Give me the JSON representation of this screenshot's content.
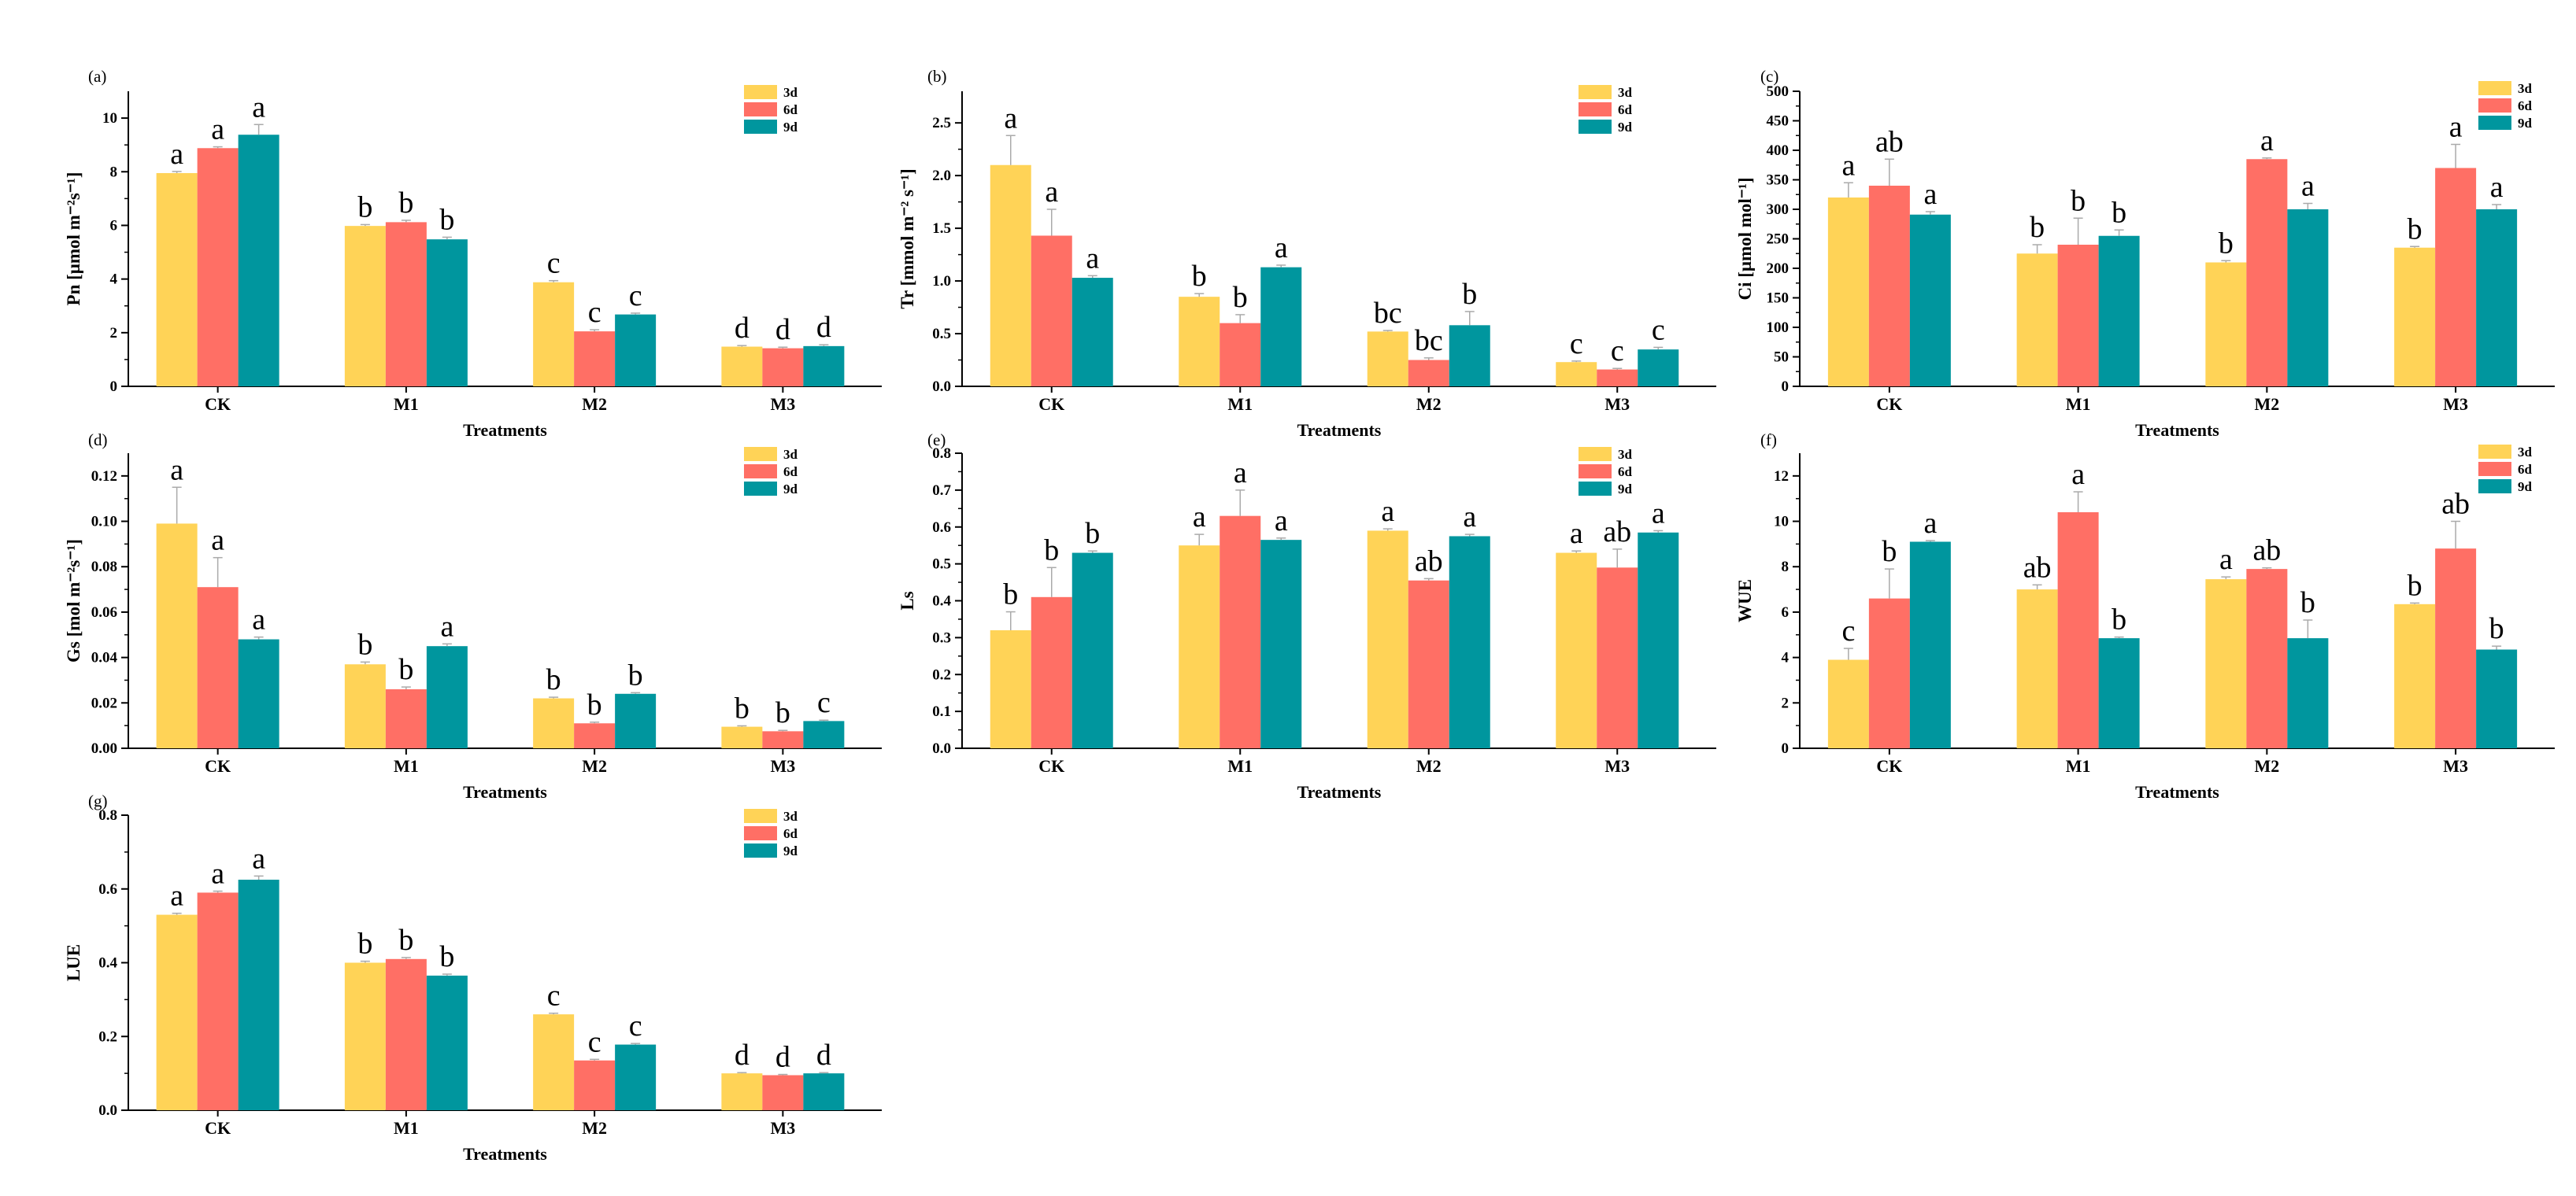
{
  "colors": {
    "3d": "#FFD357",
    "6d": "#FF6F65",
    "9d": "#00969E",
    "error_bar": "#AAAAAA"
  },
  "chart_data": [
    {
      "type": "bar",
      "panel": "(a)",
      "ylabel": "Pn [μmol m⁻²s⁻¹]",
      "xlabel": "Treatments",
      "categories": [
        "CK",
        "M1",
        "M2",
        "M3"
      ],
      "ylim": [
        0,
        11
      ],
      "yticks": [
        0,
        2,
        4,
        6,
        8,
        10
      ],
      "ytick_labels": [
        "0",
        "2",
        "4",
        "6",
        "8",
        "10"
      ],
      "legend_position": "top-right",
      "series": [
        {
          "name": "3d",
          "values": [
            7.95,
            5.98,
            3.88,
            1.48
          ],
          "errors": [
            0.06,
            0.05,
            0.06,
            0.04
          ],
          "letters": [
            "a",
            "b",
            "c",
            "d"
          ]
        },
        {
          "name": "6d",
          "values": [
            8.88,
            6.12,
            2.05,
            1.42
          ],
          "errors": [
            0.05,
            0.07,
            0.06,
            0.04
          ],
          "letters": [
            "a",
            "b",
            "c",
            "d"
          ]
        },
        {
          "name": "9d",
          "values": [
            9.38,
            5.48,
            2.68,
            1.5
          ],
          "errors": [
            0.38,
            0.08,
            0.05,
            0.05
          ],
          "letters": [
            "a",
            "b",
            "c",
            "d"
          ]
        }
      ]
    },
    {
      "type": "bar",
      "panel": "(b)",
      "ylabel": "Tr [mmol m⁻² s⁻¹]",
      "xlabel": "Treatments",
      "categories": [
        "CK",
        "M1",
        "M2",
        "M3"
      ],
      "ylim": [
        0,
        2.8
      ],
      "yticks": [
        0,
        0.5,
        1.0,
        1.5,
        2.0,
        2.5
      ],
      "ytick_labels": [
        "0.0",
        "0.5",
        "1.0",
        "1.5",
        "2.0",
        "2.5"
      ],
      "legend_position": "top-right",
      "series": [
        {
          "name": "3d",
          "values": [
            2.1,
            0.85,
            0.52,
            0.23
          ],
          "errors": [
            0.28,
            0.03,
            0.01,
            0.01
          ],
          "letters": [
            "a",
            "b",
            "bc",
            "c"
          ]
        },
        {
          "name": "6d",
          "values": [
            1.43,
            0.6,
            0.25,
            0.16
          ],
          "errors": [
            0.25,
            0.08,
            0.02,
            0.01
          ],
          "letters": [
            "a",
            "b",
            "bc",
            "c"
          ]
        },
        {
          "name": "9d",
          "values": [
            1.03,
            1.13,
            0.58,
            0.35
          ],
          "errors": [
            0.02,
            0.02,
            0.13,
            0.02
          ],
          "letters": [
            "a",
            "a",
            "b",
            "c"
          ]
        }
      ]
    },
    {
      "type": "bar",
      "panel": "(c)",
      "ylabel": "Ci [μmol mol⁻¹]",
      "xlabel": "Treatments",
      "categories": [
        "CK",
        "M1",
        "M2",
        "M3"
      ],
      "ylim": [
        0,
        500
      ],
      "yticks": [
        0,
        50,
        100,
        150,
        200,
        250,
        300,
        350,
        400,
        450,
        500
      ],
      "ytick_labels": [
        "0",
        "50",
        "100",
        "150",
        "200",
        "250",
        "300",
        "350",
        "400",
        "450",
        "500"
      ],
      "legend_position": "top-right",
      "series": [
        {
          "name": "3d",
          "values": [
            320,
            225,
            210,
            235
          ],
          "errors": [
            25,
            15,
            3,
            2
          ],
          "letters": [
            "a",
            "b",
            "b",
            "b"
          ]
        },
        {
          "name": "6d",
          "values": [
            340,
            240,
            385,
            370
          ],
          "errors": [
            45,
            45,
            2,
            40
          ],
          "letters": [
            "ab",
            "b",
            "a",
            "a"
          ]
        },
        {
          "name": "9d",
          "values": [
            291,
            255,
            300,
            300
          ],
          "errors": [
            5,
            10,
            10,
            8
          ],
          "letters": [
            "a",
            "b",
            "a",
            "a"
          ]
        }
      ]
    },
    {
      "type": "bar",
      "panel": "(d)",
      "ylabel": "Gs [mol m⁻²s⁻¹]",
      "xlabel": "Treatments",
      "categories": [
        "CK",
        "M1",
        "M2",
        "M3"
      ],
      "ylim": [
        0,
        0.13
      ],
      "yticks": [
        0,
        0.02,
        0.04,
        0.06,
        0.08,
        0.1,
        0.12
      ],
      "ytick_labels": [
        "0.00",
        "0.02",
        "0.04",
        "0.06",
        "0.08",
        "0.10",
        "0.12"
      ],
      "legend_position": "top-right",
      "series": [
        {
          "name": "3d",
          "values": [
            0.099,
            0.037,
            0.022,
            0.0095
          ],
          "errors": [
            0.016,
            0.001,
            0.0005,
            0.0004
          ],
          "letters": [
            "a",
            "b",
            "b",
            "b"
          ]
        },
        {
          "name": "6d",
          "values": [
            0.071,
            0.026,
            0.011,
            0.0075
          ],
          "errors": [
            0.013,
            0.001,
            0.0005,
            0.0004
          ],
          "letters": [
            "a",
            "b",
            "b",
            "b"
          ]
        },
        {
          "name": "9d",
          "values": [
            0.048,
            0.045,
            0.024,
            0.012
          ],
          "errors": [
            0.001,
            0.001,
            0.0005,
            0.0004
          ],
          "letters": [
            "a",
            "a",
            "b",
            "c"
          ]
        }
      ]
    },
    {
      "type": "bar",
      "panel": "(e)",
      "ylabel": "Ls",
      "xlabel": "Treatments",
      "categories": [
        "CK",
        "M1",
        "M2",
        "M3"
      ],
      "ylim": [
        0,
        0.8
      ],
      "yticks": [
        0,
        0.1,
        0.2,
        0.3,
        0.4,
        0.5,
        0.6,
        0.7,
        0.8
      ],
      "ytick_labels": [
        "0.0",
        "0.1",
        "0.2",
        "0.3",
        "0.4",
        "0.5",
        "0.6",
        "0.7",
        "0.8"
      ],
      "legend_position": "top-right",
      "series": [
        {
          "name": "3d",
          "values": [
            0.32,
            0.55,
            0.59,
            0.53
          ],
          "errors": [
            0.05,
            0.03,
            0.005,
            0.005
          ],
          "letters": [
            "b",
            "a",
            "a",
            "a"
          ]
        },
        {
          "name": "6d",
          "values": [
            0.41,
            0.63,
            0.455,
            0.49
          ],
          "errors": [
            0.08,
            0.07,
            0.005,
            0.05
          ],
          "letters": [
            "b",
            "a",
            "ab",
            "ab"
          ]
        },
        {
          "name": "9d",
          "values": [
            0.53,
            0.565,
            0.575,
            0.585
          ],
          "errors": [
            0.005,
            0.005,
            0.005,
            0.005
          ],
          "letters": [
            "b",
            "a",
            "a",
            "a"
          ]
        }
      ]
    },
    {
      "type": "bar",
      "panel": "(f)",
      "ylabel": "WUE",
      "xlabel": "Treatments",
      "categories": [
        "CK",
        "M1",
        "M2",
        "M3"
      ],
      "ylim": [
        0,
        13
      ],
      "yticks": [
        0,
        2,
        4,
        6,
        8,
        10,
        12
      ],
      "ytick_labels": [
        "0",
        "2",
        "4",
        "6",
        "8",
        "10",
        "12"
      ],
      "legend_position": "top-right",
      "series": [
        {
          "name": "3d",
          "values": [
            3.9,
            7.0,
            7.45,
            6.35
          ],
          "errors": [
            0.5,
            0.2,
            0.1,
            0.05
          ],
          "letters": [
            "c",
            "ab",
            "a",
            "b"
          ]
        },
        {
          "name": "6d",
          "values": [
            6.6,
            10.4,
            7.9,
            8.8
          ],
          "errors": [
            1.3,
            0.9,
            0.05,
            1.2
          ],
          "letters": [
            "b",
            "a",
            "ab",
            "ab"
          ]
        },
        {
          "name": "9d",
          "values": [
            9.1,
            4.85,
            4.85,
            4.35
          ],
          "errors": [
            0.05,
            0.05,
            0.8,
            0.15
          ],
          "letters": [
            "a",
            "b",
            "b",
            "b"
          ]
        }
      ]
    },
    {
      "type": "bar",
      "panel": "(g)",
      "ylabel": "LUE",
      "xlabel": "Treatments",
      "categories": [
        "CK",
        "M1",
        "M2",
        "M3"
      ],
      "ylim": [
        0,
        0.8
      ],
      "yticks": [
        0,
        0.2,
        0.4,
        0.6,
        0.8
      ],
      "ytick_labels": [
        "0.0",
        "0.2",
        "0.4",
        "0.6",
        "0.8"
      ],
      "legend_position": "top-right",
      "series": [
        {
          "name": "3d",
          "values": [
            0.53,
            0.4,
            0.26,
            0.1
          ],
          "errors": [
            0.004,
            0.004,
            0.003,
            0.002
          ],
          "letters": [
            "a",
            "b",
            "c",
            "d"
          ]
        },
        {
          "name": "6d",
          "values": [
            0.59,
            0.41,
            0.135,
            0.095
          ],
          "errors": [
            0.004,
            0.004,
            0.003,
            0.002
          ],
          "letters": [
            "a",
            "b",
            "c",
            "d"
          ]
        },
        {
          "name": "9d",
          "values": [
            0.625,
            0.365,
            0.178,
            0.1
          ],
          "errors": [
            0.01,
            0.004,
            0.003,
            0.002
          ],
          "letters": [
            "a",
            "b",
            "c",
            "d"
          ]
        }
      ]
    }
  ]
}
